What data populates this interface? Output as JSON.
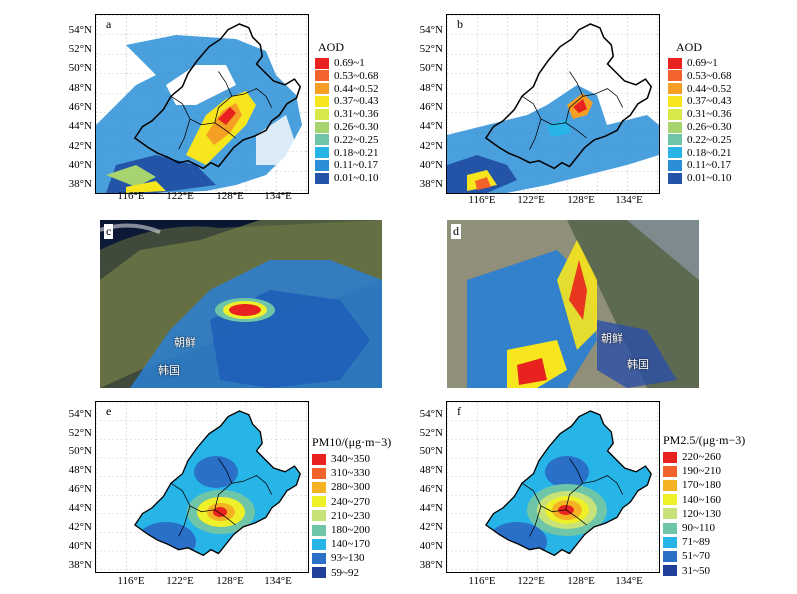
{
  "panels": {
    "a": {
      "letter": "a",
      "legend_title": "AOD"
    },
    "b": {
      "letter": "b",
      "legend_title": "AOD"
    },
    "c": {
      "letter": "c",
      "place1": "朝鲜",
      "place2": "韩国"
    },
    "d": {
      "letter": "d",
      "place1": "朝鲜",
      "place2": "韩国"
    },
    "e": {
      "letter": "e",
      "legend_title": "PM10/(μg·m−3)"
    },
    "f": {
      "letter": "f",
      "legend_title": "PM2.5/(μg·m−3)"
    }
  },
  "lat_ticks": [
    "54°N",
    "52°N",
    "50°N",
    "48°N",
    "46°N",
    "44°N",
    "42°N",
    "40°N",
    "38°N"
  ],
  "lon_ticks": [
    "116°E",
    "122°E",
    "128°E",
    "134°E"
  ],
  "aod_legend": [
    {
      "label": "0.69~1",
      "color": "#e8231f"
    },
    {
      "label": "0.53~0.68",
      "color": "#f2622b"
    },
    {
      "label": "0.44~0.52",
      "color": "#f5a024"
    },
    {
      "label": "0.37~0.43",
      "color": "#f7e61d"
    },
    {
      "label": "0.31~0.36",
      "color": "#d9e94a"
    },
    {
      "label": "0.26~0.30",
      "color": "#a8d46f"
    },
    {
      "label": "0.22~0.25",
      "color": "#6fc5a8"
    },
    {
      "label": "0.18~0.21",
      "color": "#27b5e8"
    },
    {
      "label": "0.11~0.17",
      "color": "#2a8fd6"
    },
    {
      "label": "0.01~0.10",
      "color": "#2354a8"
    }
  ],
  "pm10_legend": [
    {
      "label": "340~350",
      "color": "#e8231f"
    },
    {
      "label": "310~330",
      "color": "#f2622b"
    },
    {
      "label": "280~300",
      "color": "#f5b324"
    },
    {
      "label": "240~270",
      "color": "#eef02a"
    },
    {
      "label": "210~230",
      "color": "#c8e27a"
    },
    {
      "label": "180~200",
      "color": "#6fc5a8"
    },
    {
      "label": "140~170",
      "color": "#27b5e8"
    },
    {
      "label": "93~130",
      "color": "#2a6fc8"
    },
    {
      "label": "59~92",
      "color": "#1f3f98"
    }
  ],
  "pm25_legend": [
    {
      "label": "220~260",
      "color": "#e8231f"
    },
    {
      "label": "190~210",
      "color": "#f2622b"
    },
    {
      "label": "170~180",
      "color": "#f5b324"
    },
    {
      "label": "140~160",
      "color": "#eef02a"
    },
    {
      "label": "120~130",
      "color": "#c8e27a"
    },
    {
      "label": "90~110",
      "color": "#6fc5a8"
    },
    {
      "label": "71~89",
      "color": "#27b5e8"
    },
    {
      "label": "51~70",
      "color": "#2a6fc8"
    },
    {
      "label": "31~50",
      "color": "#1f3f98"
    }
  ]
}
